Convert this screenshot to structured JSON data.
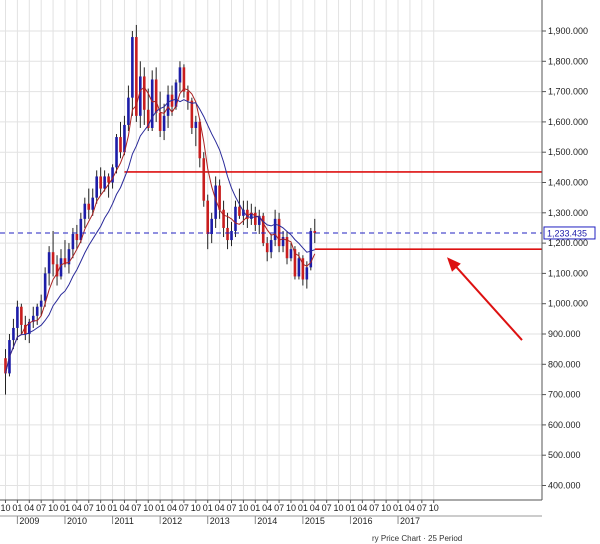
{
  "chart_data": {
    "type": "candlestick",
    "y_axis_side": "right",
    "ylim": [
      300000,
      2000000
    ],
    "y_ticks": [
      400000,
      500000,
      600000,
      700000,
      800000,
      900000,
      1000000,
      1100000,
      1200000,
      1300000,
      1400000,
      1500000,
      1600000,
      1700000,
      1800000,
      1900000
    ],
    "y_tick_labels": [
      "400.000",
      "500.000",
      "600.000",
      "700.000",
      "800.000",
      "900.000",
      "1,000.000",
      "1,100.000",
      "1,200.000",
      "1,300.000",
      "1,400.000",
      "1,500.000",
      "1,600.000",
      "1,700.000",
      "1,800.000",
      "1,900.000"
    ],
    "x_month_labels": [
      "10",
      "01",
      "04",
      "07",
      "10",
      "01",
      "04",
      "07",
      "10",
      "01",
      "04",
      "07",
      "10",
      "01",
      "04",
      "07",
      "10",
      "01",
      "04",
      "07",
      "10",
      "01",
      "04",
      "07",
      "10",
      "01",
      "04",
      "07",
      "10",
      "01",
      "04",
      "07",
      "10",
      "01",
      "04",
      "07",
      "10"
    ],
    "x_year_labels": [
      "2009",
      "2010",
      "2011",
      "2012",
      "2013",
      "2014",
      "2015",
      "2016",
      "2017"
    ],
    "current_price": 1233435,
    "current_price_label": "1,233.435",
    "horizontal_lines": [
      {
        "price": 1435000,
        "color": "#dd1111",
        "from_month": 30
      },
      {
        "price": 1180000,
        "color": "#dd1111",
        "from_month": 78
      }
    ],
    "moving_averages": [
      {
        "color": "#aa2222"
      },
      {
        "color": "#2a2a9a"
      }
    ],
    "arrow": {
      "color": "#dd1111",
      "from": [
        1255,
        880000
      ],
      "to": [
        1185,
        1140000
      ]
    },
    "candles": [
      [
        820000,
        850000,
        700000,
        770000
      ],
      [
        770000,
        900000,
        760000,
        880000
      ],
      [
        880000,
        950000,
        850000,
        920000
      ],
      [
        920000,
        1010000,
        880000,
        990000
      ],
      [
        990000,
        1000000,
        900000,
        930000
      ],
      [
        930000,
        960000,
        880000,
        900000
      ],
      [
        900000,
        950000,
        870000,
        940000
      ],
      [
        940000,
        990000,
        920000,
        960000
      ],
      [
        960000,
        1000000,
        930000,
        990000
      ],
      [
        990000,
        1030000,
        960000,
        1010000
      ],
      [
        1010000,
        1120000,
        990000,
        1100000
      ],
      [
        1100000,
        1190000,
        1060000,
        1170000
      ],
      [
        1170000,
        1240000,
        1090000,
        1130000
      ],
      [
        1130000,
        1160000,
        1060000,
        1090000
      ],
      [
        1090000,
        1180000,
        1080000,
        1150000
      ],
      [
        1150000,
        1210000,
        1120000,
        1130000
      ],
      [
        1130000,
        1200000,
        1100000,
        1180000
      ],
      [
        1180000,
        1250000,
        1150000,
        1230000
      ],
      [
        1230000,
        1260000,
        1180000,
        1210000
      ],
      [
        1210000,
        1300000,
        1200000,
        1280000
      ],
      [
        1280000,
        1350000,
        1250000,
        1330000
      ],
      [
        1330000,
        1380000,
        1280000,
        1310000
      ],
      [
        1310000,
        1380000,
        1290000,
        1350000
      ],
      [
        1350000,
        1440000,
        1330000,
        1420000
      ],
      [
        1420000,
        1450000,
        1360000,
        1380000
      ],
      [
        1380000,
        1440000,
        1370000,
        1420000
      ],
      [
        1420000,
        1430000,
        1350000,
        1400000
      ],
      [
        1400000,
        1460000,
        1380000,
        1450000
      ],
      [
        1450000,
        1560000,
        1430000,
        1550000
      ],
      [
        1550000,
        1600000,
        1480000,
        1500000
      ],
      [
        1500000,
        1620000,
        1490000,
        1590000
      ],
      [
        1590000,
        1720000,
        1570000,
        1680000
      ],
      [
        1680000,
        1900000,
        1620000,
        1880000
      ],
      [
        1880000,
        1920000,
        1600000,
        1620000
      ],
      [
        1620000,
        1800000,
        1580000,
        1750000
      ],
      [
        1750000,
        1780000,
        1590000,
        1640000
      ],
      [
        1640000,
        1710000,
        1570000,
        1580000
      ],
      [
        1580000,
        1770000,
        1570000,
        1740000
      ],
      [
        1740000,
        1780000,
        1600000,
        1630000
      ],
      [
        1630000,
        1700000,
        1550000,
        1570000
      ],
      [
        1570000,
        1660000,
        1540000,
        1620000
      ],
      [
        1620000,
        1720000,
        1580000,
        1690000
      ],
      [
        1690000,
        1720000,
        1620000,
        1650000
      ],
      [
        1650000,
        1740000,
        1640000,
        1730000
      ],
      [
        1730000,
        1800000,
        1700000,
        1780000
      ],
      [
        1780000,
        1790000,
        1680000,
        1700000
      ],
      [
        1700000,
        1720000,
        1640000,
        1670000
      ],
      [
        1670000,
        1680000,
        1560000,
        1580000
      ],
      [
        1580000,
        1620000,
        1520000,
        1600000
      ],
      [
        1600000,
        1610000,
        1450000,
        1480000
      ],
      [
        1480000,
        1500000,
        1320000,
        1340000
      ],
      [
        1340000,
        1360000,
        1180000,
        1230000
      ],
      [
        1230000,
        1300000,
        1200000,
        1280000
      ],
      [
        1280000,
        1420000,
        1250000,
        1390000
      ],
      [
        1390000,
        1410000,
        1280000,
        1310000
      ],
      [
        1310000,
        1340000,
        1220000,
        1250000
      ],
      [
        1250000,
        1300000,
        1180000,
        1210000
      ],
      [
        1210000,
        1270000,
        1190000,
        1240000
      ],
      [
        1240000,
        1340000,
        1220000,
        1320000
      ],
      [
        1320000,
        1380000,
        1280000,
        1290000
      ],
      [
        1290000,
        1340000,
        1260000,
        1310000
      ],
      [
        1310000,
        1340000,
        1250000,
        1280000
      ],
      [
        1280000,
        1330000,
        1260000,
        1300000
      ],
      [
        1300000,
        1320000,
        1240000,
        1260000
      ],
      [
        1260000,
        1310000,
        1230000,
        1290000
      ],
      [
        1290000,
        1300000,
        1190000,
        1200000
      ],
      [
        1200000,
        1220000,
        1140000,
        1170000
      ],
      [
        1170000,
        1230000,
        1150000,
        1210000
      ],
      [
        1210000,
        1310000,
        1190000,
        1280000
      ],
      [
        1280000,
        1300000,
        1170000,
        1190000
      ],
      [
        1190000,
        1240000,
        1170000,
        1220000
      ],
      [
        1220000,
        1240000,
        1130000,
        1150000
      ],
      [
        1150000,
        1200000,
        1140000,
        1180000
      ],
      [
        1180000,
        1190000,
        1080000,
        1090000
      ],
      [
        1090000,
        1170000,
        1080000,
        1150000
      ],
      [
        1150000,
        1160000,
        1060000,
        1080000
      ],
      [
        1080000,
        1140000,
        1050000,
        1120000
      ],
      [
        1120000,
        1250000,
        1110000,
        1240000
      ],
      [
        1240000,
        1280000,
        1200000,
        1233435
      ]
    ]
  },
  "footer": {
    "text": "ry Price Chart · 25 Period"
  }
}
